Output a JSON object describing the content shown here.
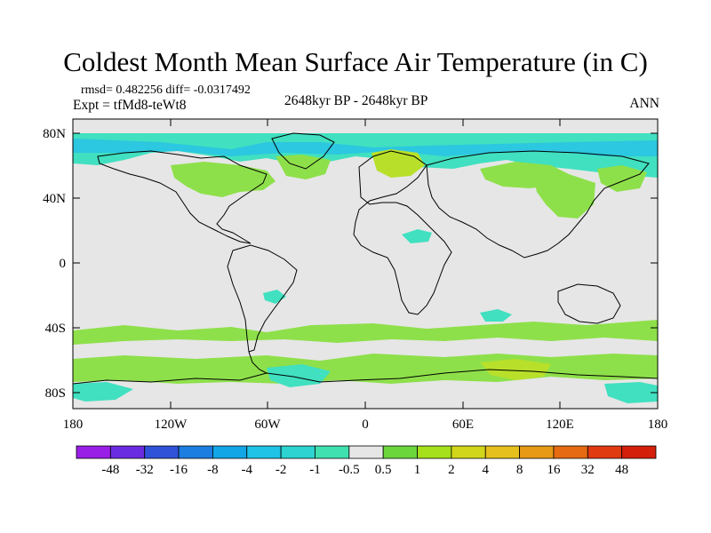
{
  "title": "Coldest Month Mean Surface Air Temperature (in C)",
  "stats": "rmsd= 0.482256  diff= -0.0317492",
  "experiment": "Expt = tfMd8-teWt8",
  "period": "2648kyr BP - 2648kyr BP",
  "season": "ANN",
  "axes": {
    "lat_ticks": [
      "80N",
      "40N",
      "0",
      "40S",
      "80S"
    ],
    "lon_ticks": [
      "180",
      "120W",
      "60W",
      "0",
      "60E",
      "120E",
      "180"
    ]
  },
  "colorbar": {
    "labels": [
      "-48",
      "-32",
      "-16",
      "-8",
      "-4",
      "-2",
      "-1",
      "-0.5",
      "0.5",
      "1",
      "2",
      "4",
      "8",
      "16",
      "32",
      "48"
    ],
    "colors": [
      "#9a1fe6",
      "#6a2ce0",
      "#2f52d9",
      "#1c7ee0",
      "#12a6e6",
      "#1ec3e6",
      "#2cd3d0",
      "#40e0b0",
      "#e6e6e6",
      "#6ad63c",
      "#a6e01c",
      "#d2d61a",
      "#e6c01c",
      "#e69a16",
      "#e66a12",
      "#e03a10",
      "#d41f0a"
    ]
  },
  "map": {
    "background": "#e6e6e6",
    "coast": "#000000",
    "cool_color": "#40e0c0",
    "cooler_color": "#2cc7e0",
    "warm_color": "#8ee04a",
    "warmer_color": "#b8e02a"
  }
}
